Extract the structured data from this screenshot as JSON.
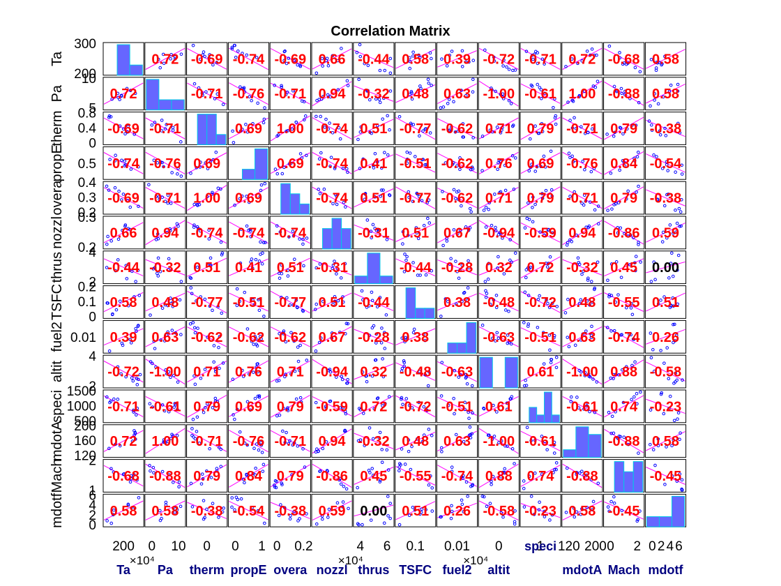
{
  "chart_data": {
    "type": "scatter-matrix",
    "title": "Correlation Matrix",
    "variables": [
      "Ta",
      "Pa",
      "therm",
      "propE",
      "overa",
      "nozzl",
      "thrus",
      "TSFC",
      "fuel2",
      "altit",
      "speci",
      "mdotA",
      "Mach",
      "mdotf"
    ],
    "row_labels": [
      "Ta",
      "Pa",
      "therm",
      "propE",
      "overa",
      "nozzl",
      "thrus",
      "TSFC",
      "fuel2",
      "altit",
      "speci",
      "mdotA",
      "Mach",
      "mdotf"
    ],
    "col_labels": [
      "Ta",
      "Pa",
      "therm",
      "propE",
      "overa",
      "nozzl",
      "thrus",
      "TSFC",
      "fuel2",
      "altit",
      "speci",
      "mdotA",
      "Mach",
      "mdotf"
    ],
    "correlations": [
      [
        "",
        "0.72",
        "-0.69",
        "-0.74",
        "-0.69",
        "0.66",
        "-0.44",
        "0.58",
        "0.39",
        "-0.72",
        "-0.71",
        "0.72",
        "-0.68",
        "0.58"
      ],
      [
        "0.72",
        "",
        "-0.71",
        "-0.76",
        "-0.71",
        "0.94",
        "-0.32",
        "0.48",
        "0.63",
        "-1.00",
        "-0.61",
        "1.00",
        "-0.88",
        "0.58"
      ],
      [
        "-0.69",
        "-0.71",
        "",
        "0.69",
        "1.00",
        "-0.74",
        "0.51",
        "-0.77",
        "-0.62",
        "0.71",
        "0.79",
        "-0.71",
        "0.79",
        "-0.38"
      ],
      [
        "-0.74",
        "-0.76",
        "0.69",
        "",
        "0.69",
        "-0.74",
        "0.41",
        "-0.51",
        "-0.62",
        "0.76",
        "0.69",
        "-0.76",
        "0.84",
        "-0.54"
      ],
      [
        "-0.69",
        "-0.71",
        "1.00",
        "0.69",
        "",
        "-0.74",
        "0.51",
        "-0.77",
        "-0.62",
        "0.71",
        "0.79",
        "-0.71",
        "0.79",
        "-0.38"
      ],
      [
        "0.66",
        "0.94",
        "-0.74",
        "-0.74",
        "-0.74",
        "",
        "-0.31",
        "0.51",
        "0.67",
        "-0.94",
        "-0.59",
        "0.94",
        "-0.86",
        "0.59"
      ],
      [
        "-0.44",
        "-0.32",
        "0.51",
        "0.41",
        "0.51",
        "-0.31",
        "",
        "-0.44",
        "-0.28",
        "0.32",
        "0.72",
        "-0.32",
        "0.45",
        "0.00"
      ],
      [
        "0.58",
        "0.48",
        "-0.77",
        "-0.51",
        "-0.77",
        "0.51",
        "-0.44",
        "",
        "0.38",
        "-0.48",
        "-0.72",
        "0.48",
        "-0.55",
        "0.51"
      ],
      [
        "0.39",
        "0.63",
        "-0.62",
        "-0.62",
        "-0.62",
        "0.67",
        "-0.28",
        "0.38",
        "",
        "-0.63",
        "-0.51",
        "0.63",
        "-0.74",
        "0.26"
      ],
      [
        "-0.72",
        "-1.00",
        "0.71",
        "0.76",
        "0.71",
        "-0.94",
        "0.32",
        "-0.48",
        "-0.63",
        "",
        "0.61",
        "-1.00",
        "0.88",
        "-0.58"
      ],
      [
        "-0.71",
        "-0.61",
        "0.79",
        "0.69",
        "0.79",
        "-0.59",
        "0.72",
        "-0.72",
        "-0.51",
        "0.61",
        "",
        "-0.61",
        "0.74",
        "-0.23"
      ],
      [
        "0.72",
        "1.00",
        "-0.71",
        "-0.76",
        "-0.71",
        "0.94",
        "-0.32",
        "0.48",
        "0.63",
        "-1.00",
        "-0.61",
        "",
        "-0.88",
        "0.58"
      ],
      [
        "-0.68",
        "-0.88",
        "0.79",
        "0.84",
        "0.79",
        "-0.86",
        "0.45",
        "-0.55",
        "-0.74",
        "0.88",
        "0.74",
        "-0.88",
        "",
        "-0.45"
      ],
      [
        "0.58",
        "0.58",
        "-0.38",
        "-0.54",
        "-0.38",
        "0.59",
        "0.00",
        "0.51",
        "0.26",
        "-0.58",
        "-0.23",
        "0.58",
        "-0.45",
        ""
      ]
    ],
    "histograms": [
      [
        0,
        3,
        1
      ],
      [
        3,
        1,
        1
      ],
      [
        0,
        3,
        3,
        1
      ],
      [
        0,
        1,
        3
      ],
      [
        0,
        3,
        2,
        1
      ],
      [
        0,
        2,
        3,
        2
      ],
      [
        1,
        4,
        1
      ],
      [
        0,
        3,
        1,
        1
      ],
      [
        0,
        1,
        1,
        3
      ],
      [
        3,
        0,
        3
      ],
      [
        0,
        2,
        1,
        4,
        1
      ],
      [
        1,
        4,
        3
      ],
      [
        0,
        3,
        2,
        3
      ],
      [
        1,
        1,
        3
      ]
    ],
    "y_ticks": [
      [
        "300",
        "200"
      ],
      [
        "10",
        "5"
      ],
      [
        "0.8",
        "0.4",
        "0"
      ],
      [
        "0.5"
      ],
      [
        "0.4",
        "0.3",
        "0.2"
      ],
      [
        "0.3",
        "0.2"
      ],
      [
        "4",
        "2"
      ],
      [
        "0.2",
        "0.1",
        "0"
      ],
      [
        "0.01"
      ],
      [
        "4",
        "2"
      ],
      [
        "1500",
        "1000",
        "500"
      ],
      [
        "200",
        "160",
        "120"
      ],
      [
        "2",
        "1"
      ],
      [
        "6",
        "4",
        "2",
        "0"
      ]
    ],
    "x_ticks": [
      [
        "200"
      ],
      [
        "0",
        "10"
      ],
      [
        "0"
      ],
      [
        "0",
        "1"
      ],
      [
        "0",
        "0.2"
      ],
      [],
      [
        "4",
        "6"
      ],
      [
        "0.1"
      ],
      [
        "0.01"
      ],
      [
        "0"
      ],
      [
        "1"
      ],
      [
        "120",
        "200"
      ],
      [
        "0",
        "2"
      ],
      [
        "0",
        "2",
        "4",
        "6"
      ]
    ],
    "x_exponents": [
      {
        "col": 1,
        "text": "×10⁴"
      },
      {
        "col": 6,
        "text": "×10⁴"
      },
      {
        "col": 9,
        "text": "×10⁴"
      }
    ],
    "highlighted_label": "speci",
    "colors": {
      "histogram_fill": "#6666ff",
      "histogram_edge": "#00c8e6",
      "point": "#0000ff",
      "fit_line": "#ff00ff",
      "corr_text": "#ff0000",
      "zero_corr_text": "#000000",
      "axis_label": "#000080",
      "frame": "#000000"
    }
  }
}
